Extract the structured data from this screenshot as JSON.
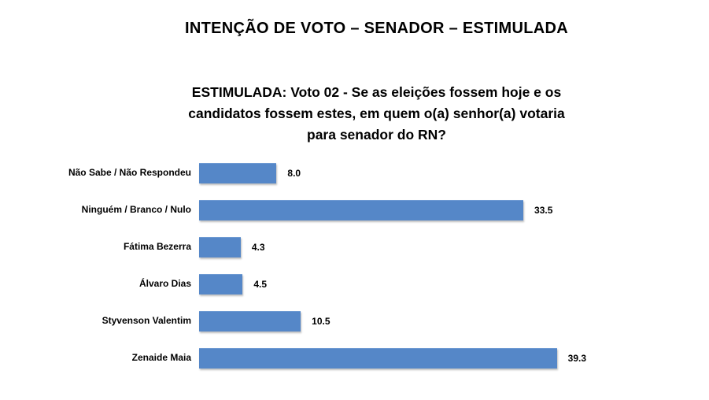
{
  "page": {
    "background": "#ffffff"
  },
  "header": {
    "title": "INTENÇÃO DE VOTO – SENADOR – ESTIMULADA",
    "subtitle": "ESTIMULADA: Voto 02 - Se as eleições fossem hoje e os candidatos fossem estes, em quem o(a) senhor(a) votaria para senador do RN?"
  },
  "chart_data": {
    "type": "bar",
    "orientation": "horizontal",
    "title": "INTENÇÃO DE VOTO – SENADOR – ESTIMULADA",
    "subtitle": "ESTIMULADA: Voto 02 - Se as eleições fossem hoje e os candidatos fossem estes, em quem o(a) senhor(a) votaria para senador do RN?",
    "categories": [
      "Não Sabe / Não Respondeu",
      "Ninguém / Branco / Nulo",
      "Fátima Bezerra",
      "Álvaro Dias",
      "Styvenson Valentim",
      "Zenaide Maia"
    ],
    "values": [
      8.0,
      33.5,
      4.3,
      4.5,
      10.5,
      39.3
    ],
    "value_labels": [
      "8.0",
      "33.5",
      "4.3",
      "4.5",
      "10.5",
      "39.3"
    ],
    "xlabel": "",
    "ylabel": "",
    "xlim": [
      0,
      40
    ],
    "grid": false,
    "legend": false,
    "axis_lines": false,
    "bar_color": "#5587C8",
    "text_color": "#000000",
    "value_label_position": "outside-end"
  }
}
